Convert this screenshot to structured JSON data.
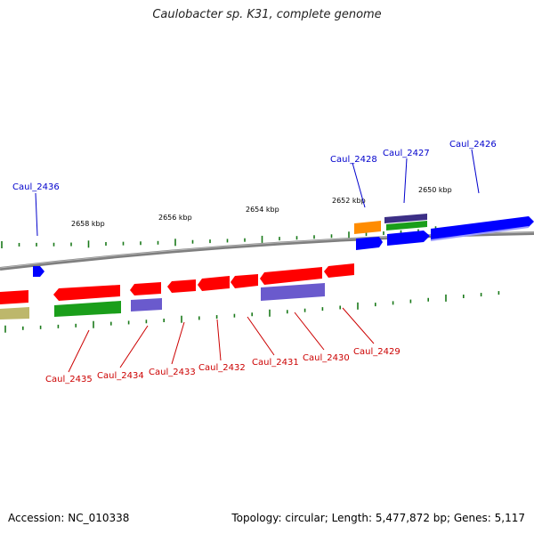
{
  "title": "Caulobacter sp. K31, complete genome",
  "footer": {
    "accession": "Accession: NC_010338",
    "topology": "Topology: circular; Length: 5,477,872 bp; Genes: 5,117"
  },
  "colors": {
    "forward_label": "#0000cc",
    "reverse_label": "#cc0000",
    "red": "#ff0000",
    "blue": "#0000ff",
    "orange": "#ff8c00",
    "purple": "#6a5acd",
    "dark_purple": "#3c2f86",
    "green": "#1a9e1a",
    "olive": "#bdb76b",
    "tick": "#1a7a1a",
    "backbone": "#808080"
  },
  "scale_labels": [
    "2658 kbp",
    "2656 kbp",
    "2654 kbp",
    "2652 kbp",
    "2650 kbp"
  ],
  "forward_genes": [
    {
      "name": "Caul_2436",
      "color": "blue"
    },
    {
      "name": "Caul_2428",
      "color": "orange"
    },
    {
      "name": "Caul_2427",
      "color": "blue"
    },
    {
      "name": "Caul_2426",
      "color": "blue"
    }
  ],
  "reverse_genes": [
    {
      "name": "Caul_2435",
      "color": "red"
    },
    {
      "name": "Caul_2434",
      "color": "red"
    },
    {
      "name": "Caul_2433",
      "color": "red"
    },
    {
      "name": "Caul_2432",
      "color": "red"
    },
    {
      "name": "Caul_2431",
      "color": "red"
    },
    {
      "name": "Caul_2430",
      "color": "red"
    },
    {
      "name": "Caul_2429",
      "color": "red"
    }
  ]
}
